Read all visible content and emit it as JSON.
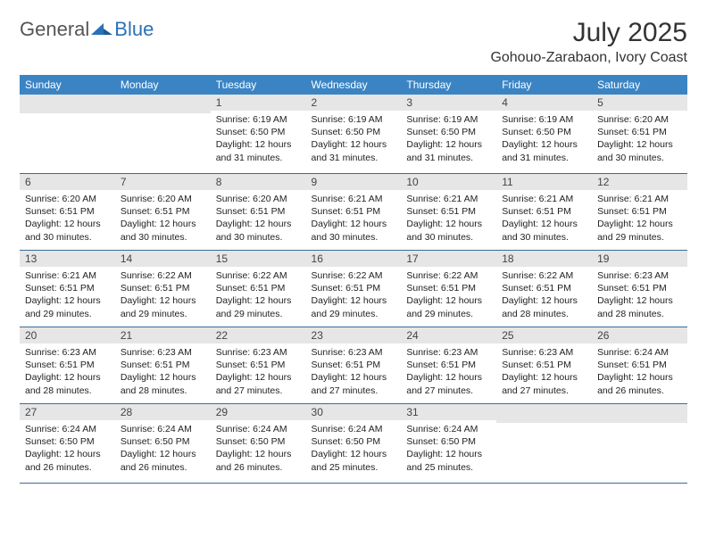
{
  "logo": {
    "textGeneral": "General",
    "textBlue": "Blue"
  },
  "title": "July 2025",
  "location": "Gohouo-Zarabaon, Ivory Coast",
  "colors": {
    "headerBg": "#3b84c4",
    "headerText": "#ffffff",
    "dayBarBg": "#e6e6e6",
    "weekDivider": "#3b6b9a",
    "logoBlue": "#2a71b8",
    "logoGray": "#555555"
  },
  "dayNames": [
    "Sunday",
    "Monday",
    "Tuesday",
    "Wednesday",
    "Thursday",
    "Friday",
    "Saturday"
  ],
  "weeks": [
    [
      {
        "n": "",
        "sr": "",
        "ss": "",
        "dl": ""
      },
      {
        "n": "",
        "sr": "",
        "ss": "",
        "dl": ""
      },
      {
        "n": "1",
        "sr": "6:19 AM",
        "ss": "6:50 PM",
        "dl": "12 hours and 31 minutes."
      },
      {
        "n": "2",
        "sr": "6:19 AM",
        "ss": "6:50 PM",
        "dl": "12 hours and 31 minutes."
      },
      {
        "n": "3",
        "sr": "6:19 AM",
        "ss": "6:50 PM",
        "dl": "12 hours and 31 minutes."
      },
      {
        "n": "4",
        "sr": "6:19 AM",
        "ss": "6:50 PM",
        "dl": "12 hours and 31 minutes."
      },
      {
        "n": "5",
        "sr": "6:20 AM",
        "ss": "6:51 PM",
        "dl": "12 hours and 30 minutes."
      }
    ],
    [
      {
        "n": "6",
        "sr": "6:20 AM",
        "ss": "6:51 PM",
        "dl": "12 hours and 30 minutes."
      },
      {
        "n": "7",
        "sr": "6:20 AM",
        "ss": "6:51 PM",
        "dl": "12 hours and 30 minutes."
      },
      {
        "n": "8",
        "sr": "6:20 AM",
        "ss": "6:51 PM",
        "dl": "12 hours and 30 minutes."
      },
      {
        "n": "9",
        "sr": "6:21 AM",
        "ss": "6:51 PM",
        "dl": "12 hours and 30 minutes."
      },
      {
        "n": "10",
        "sr": "6:21 AM",
        "ss": "6:51 PM",
        "dl": "12 hours and 30 minutes."
      },
      {
        "n": "11",
        "sr": "6:21 AM",
        "ss": "6:51 PM",
        "dl": "12 hours and 30 minutes."
      },
      {
        "n": "12",
        "sr": "6:21 AM",
        "ss": "6:51 PM",
        "dl": "12 hours and 29 minutes."
      }
    ],
    [
      {
        "n": "13",
        "sr": "6:21 AM",
        "ss": "6:51 PM",
        "dl": "12 hours and 29 minutes."
      },
      {
        "n": "14",
        "sr": "6:22 AM",
        "ss": "6:51 PM",
        "dl": "12 hours and 29 minutes."
      },
      {
        "n": "15",
        "sr": "6:22 AM",
        "ss": "6:51 PM",
        "dl": "12 hours and 29 minutes."
      },
      {
        "n": "16",
        "sr": "6:22 AM",
        "ss": "6:51 PM",
        "dl": "12 hours and 29 minutes."
      },
      {
        "n": "17",
        "sr": "6:22 AM",
        "ss": "6:51 PM",
        "dl": "12 hours and 29 minutes."
      },
      {
        "n": "18",
        "sr": "6:22 AM",
        "ss": "6:51 PM",
        "dl": "12 hours and 28 minutes."
      },
      {
        "n": "19",
        "sr": "6:23 AM",
        "ss": "6:51 PM",
        "dl": "12 hours and 28 minutes."
      }
    ],
    [
      {
        "n": "20",
        "sr": "6:23 AM",
        "ss": "6:51 PM",
        "dl": "12 hours and 28 minutes."
      },
      {
        "n": "21",
        "sr": "6:23 AM",
        "ss": "6:51 PM",
        "dl": "12 hours and 28 minutes."
      },
      {
        "n": "22",
        "sr": "6:23 AM",
        "ss": "6:51 PM",
        "dl": "12 hours and 27 minutes."
      },
      {
        "n": "23",
        "sr": "6:23 AM",
        "ss": "6:51 PM",
        "dl": "12 hours and 27 minutes."
      },
      {
        "n": "24",
        "sr": "6:23 AM",
        "ss": "6:51 PM",
        "dl": "12 hours and 27 minutes."
      },
      {
        "n": "25",
        "sr": "6:23 AM",
        "ss": "6:51 PM",
        "dl": "12 hours and 27 minutes."
      },
      {
        "n": "26",
        "sr": "6:24 AM",
        "ss": "6:51 PM",
        "dl": "12 hours and 26 minutes."
      }
    ],
    [
      {
        "n": "27",
        "sr": "6:24 AM",
        "ss": "6:50 PM",
        "dl": "12 hours and 26 minutes."
      },
      {
        "n": "28",
        "sr": "6:24 AM",
        "ss": "6:50 PM",
        "dl": "12 hours and 26 minutes."
      },
      {
        "n": "29",
        "sr": "6:24 AM",
        "ss": "6:50 PM",
        "dl": "12 hours and 26 minutes."
      },
      {
        "n": "30",
        "sr": "6:24 AM",
        "ss": "6:50 PM",
        "dl": "12 hours and 25 minutes."
      },
      {
        "n": "31",
        "sr": "6:24 AM",
        "ss": "6:50 PM",
        "dl": "12 hours and 25 minutes."
      },
      {
        "n": "",
        "sr": "",
        "ss": "",
        "dl": ""
      },
      {
        "n": "",
        "sr": "",
        "ss": "",
        "dl": ""
      }
    ]
  ],
  "labels": {
    "sunrise": "Sunrise:",
    "sunset": "Sunset:",
    "daylight": "Daylight:"
  }
}
